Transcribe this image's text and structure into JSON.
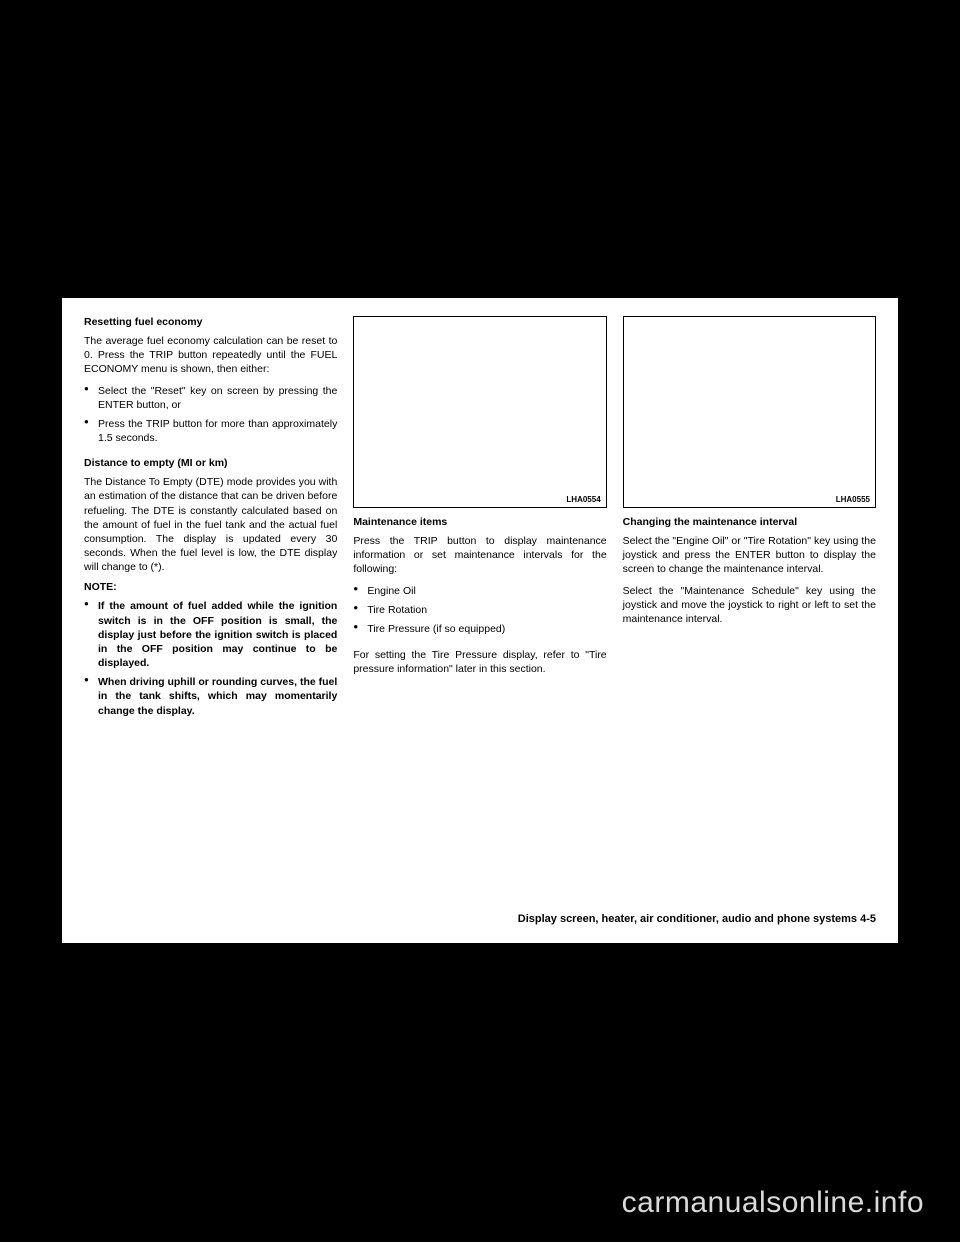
{
  "col1": {
    "h1": "Resetting fuel economy",
    "p1": "The average fuel economy calculation can be reset to 0. Press the TRIP button repeatedly until the FUEL ECONOMY menu is shown, then either:",
    "b1": [
      "Select the \"Reset\" key on screen by pressing the ENTER button, or",
      "Press the TRIP button for more than approximately 1.5 seconds."
    ],
    "h2": "Distance to empty (MI or km)",
    "p2": "The Distance To Empty (DTE) mode provides you with an estimation of the distance that can be driven before refueling. The DTE is constantly calculated based on the amount of fuel in the fuel tank and the actual fuel consumption. The display is updated every 30 seconds. When the fuel level is low, the DTE display will change to (*).",
    "h3": "NOTE:",
    "b2": [
      "If the amount of fuel added while the ignition switch is in the OFF position is small, the display just before the ignition switch is placed in the OFF position may continue to be displayed.",
      "When driving uphill or rounding curves, the fuel in the tank shifts, which may momentarily change the display."
    ]
  },
  "col2": {
    "imgLabel": "LHA0554",
    "h1": "Maintenance items",
    "p1": "Press the TRIP button to display maintenance information or set maintenance intervals for the following:",
    "b1": [
      "Engine Oil",
      "Tire Rotation",
      "Tire Pressure (if so equipped)"
    ],
    "p2": "For setting the Tire Pressure display, refer to \"Tire pressure information\" later in this section."
  },
  "col3": {
    "imgLabel": "LHA0555",
    "h1": "Changing the maintenance interval",
    "p1": "Select the \"Engine Oil\" or \"Tire Rotation\" key using the joystick and press the ENTER button to display the screen to change the maintenance interval.",
    "p2": "Select the \"Maintenance Schedule\" key using the joystick and move the joystick to right or left to set the maintenance interval."
  },
  "footer": "Display screen, heater, air conditioner, audio and phone systems    4-5",
  "watermark": "carmanualsonline.info"
}
